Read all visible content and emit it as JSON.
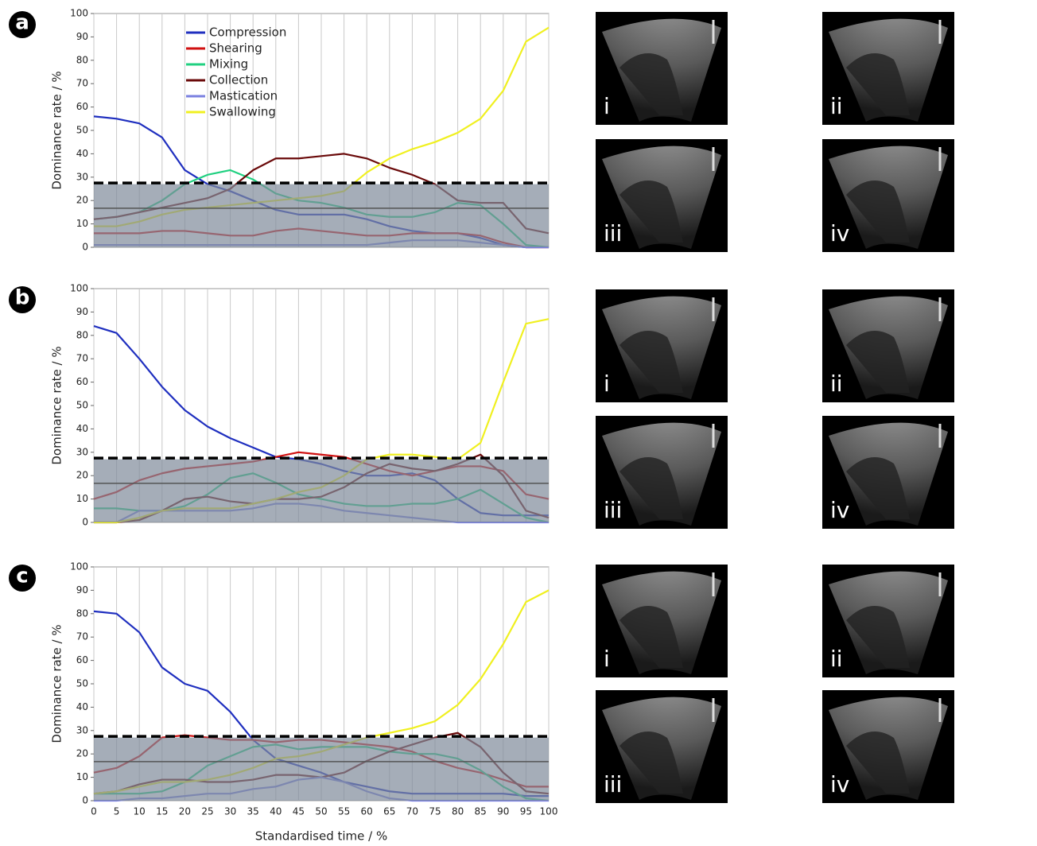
{
  "chart_data": [
    {
      "type": "line",
      "panel_label": "a",
      "ylabel": "Dominance rate / %",
      "legend": "upper left",
      "x": [
        0,
        5,
        10,
        15,
        20,
        25,
        30,
        35,
        40,
        45,
        50,
        55,
        60,
        65,
        70,
        75,
        80,
        85,
        90,
        95,
        100
      ],
      "xlim": [
        0,
        100
      ],
      "xticks": [
        0,
        5,
        10,
        15,
        20,
        25,
        30,
        35,
        40,
        45,
        50,
        55,
        60,
        65,
        70,
        75,
        80,
        85,
        90,
        95,
        100
      ],
      "xtick_labels": false,
      "ylim": [
        0,
        100
      ],
      "yticks": [
        0,
        10,
        20,
        30,
        40,
        50,
        60,
        70,
        80,
        90,
        100
      ],
      "grid": true,
      "threshold": 27.5,
      "shaded_band": [
        0,
        27
      ],
      "reference_line": 16.7,
      "series": [
        {
          "name": "Compression",
          "color": "#1f2fbf",
          "values": [
            56,
            55,
            53,
            47,
            33,
            27,
            24,
            20,
            16,
            14,
            14,
            14,
            12,
            9,
            7,
            6,
            6,
            4,
            1,
            0,
            0
          ]
        },
        {
          "name": "Shearing",
          "color": "#d01010",
          "values": [
            6,
            6,
            6,
            7,
            7,
            6,
            5,
            5,
            7,
            8,
            7,
            6,
            5,
            5,
            6,
            6,
            6,
            5,
            2,
            0,
            0
          ]
        },
        {
          "name": "Mixing",
          "color": "#20d080",
          "values": [
            12,
            13,
            15,
            20,
            27,
            31,
            33,
            29,
            23,
            20,
            19,
            17,
            14,
            13,
            13,
            15,
            19,
            18,
            10,
            1,
            0
          ]
        },
        {
          "name": "Collection",
          "color": "#6a0a0a",
          "values": [
            12,
            13,
            15,
            17,
            19,
            21,
            25,
            33,
            38,
            38,
            39,
            40,
            38,
            34,
            31,
            27,
            20,
            19,
            19,
            8,
            6
          ]
        },
        {
          "name": "Mastication",
          "color": "#7a80e0",
          "values": [
            1,
            1,
            1,
            1,
            1,
            1,
            1,
            1,
            1,
            1,
            1,
            1,
            1,
            2,
            3,
            3,
            3,
            2,
            1,
            0,
            0
          ]
        },
        {
          "name": "Swallowing",
          "color": "#f0f020",
          "values": [
            9,
            9,
            11,
            14,
            16,
            17,
            18,
            19,
            20,
            21,
            22,
            24,
            32,
            38,
            42,
            45,
            49,
            55,
            67,
            88,
            94
          ]
        }
      ]
    },
    {
      "type": "line",
      "panel_label": "b",
      "ylabel": "Dominance rate / %",
      "x": [
        0,
        5,
        10,
        15,
        20,
        25,
        30,
        35,
        40,
        45,
        50,
        55,
        60,
        65,
        70,
        75,
        80,
        85,
        90,
        95,
        100
      ],
      "xlim": [
        0,
        100
      ],
      "xticks": [
        0,
        5,
        10,
        15,
        20,
        25,
        30,
        35,
        40,
        45,
        50,
        55,
        60,
        65,
        70,
        75,
        80,
        85,
        90,
        95,
        100
      ],
      "xtick_labels": false,
      "ylim": [
        0,
        100
      ],
      "yticks": [
        0,
        10,
        20,
        30,
        40,
        50,
        60,
        70,
        80,
        90,
        100
      ],
      "grid": true,
      "threshold": 27.5,
      "shaded_band": [
        0,
        27
      ],
      "reference_line": 16.7,
      "series": [
        {
          "color": "#1f2fbf",
          "values": [
            84,
            81,
            70,
            58,
            48,
            41,
            36,
            32,
            28,
            27,
            25,
            22,
            20,
            20,
            21,
            18,
            10,
            4,
            3,
            3,
            3
          ]
        },
        {
          "color": "#d01010",
          "values": [
            10,
            13,
            18,
            21,
            23,
            24,
            25,
            26,
            28,
            30,
            29,
            28,
            25,
            22,
            20,
            22,
            24,
            24,
            22,
            12,
            10
          ]
        },
        {
          "color": "#20d080",
          "values": [
            6,
            6,
            5,
            5,
            7,
            12,
            19,
            21,
            17,
            12,
            10,
            8,
            7,
            7,
            8,
            8,
            10,
            14,
            8,
            2,
            0
          ]
        },
        {
          "color": "#6a0a0a",
          "values": [
            0,
            0,
            1,
            5,
            10,
            11,
            9,
            8,
            10,
            10,
            11,
            15,
            21,
            25,
            23,
            22,
            25,
            29,
            20,
            5,
            2
          ]
        },
        {
          "color": "#7a80e0",
          "values": [
            0,
            0,
            5,
            5,
            5,
            5,
            5,
            6,
            8,
            8,
            7,
            5,
            4,
            3,
            2,
            1,
            0,
            0,
            0,
            0,
            0
          ]
        },
        {
          "color": "#f0f020",
          "values": [
            0,
            0,
            2,
            5,
            6,
            6,
            6,
            8,
            10,
            13,
            15,
            20,
            27,
            29,
            29,
            28,
            27,
            34,
            60,
            85,
            87
          ]
        }
      ]
    },
    {
      "type": "line",
      "panel_label": "c",
      "ylabel": "Dominance rate / %",
      "xlabel": "Standardised time / %",
      "x": [
        0,
        5,
        10,
        15,
        20,
        25,
        30,
        35,
        40,
        45,
        50,
        55,
        60,
        65,
        70,
        75,
        80,
        85,
        90,
        95,
        100
      ],
      "xlim": [
        0,
        100
      ],
      "xticks": [
        0,
        5,
        10,
        15,
        20,
        25,
        30,
        35,
        40,
        45,
        50,
        55,
        60,
        65,
        70,
        75,
        80,
        85,
        90,
        95,
        100
      ],
      "xtick_labels": true,
      "ylim": [
        0,
        100
      ],
      "yticks": [
        0,
        10,
        20,
        30,
        40,
        50,
        60,
        70,
        80,
        90,
        100
      ],
      "grid": true,
      "threshold": 27.5,
      "shaded_band": [
        0,
        27
      ],
      "reference_line": 16.7,
      "series": [
        {
          "color": "#1f2fbf",
          "values": [
            81,
            80,
            72,
            57,
            50,
            47,
            38,
            26,
            18,
            15,
            12,
            8,
            6,
            4,
            3,
            3,
            3,
            3,
            3,
            2,
            2
          ]
        },
        {
          "color": "#d01010",
          "values": [
            12,
            14,
            19,
            27,
            28,
            27,
            26,
            26,
            25,
            26,
            26,
            25,
            24,
            23,
            21,
            17,
            14,
            12,
            9,
            6,
            6
          ]
        },
        {
          "color": "#20d080",
          "values": [
            3,
            3,
            3,
            4,
            8,
            15,
            19,
            23,
            24,
            22,
            23,
            23,
            23,
            21,
            20,
            20,
            18,
            13,
            6,
            1,
            0
          ]
        },
        {
          "color": "#6a0a0a",
          "values": [
            3,
            4,
            7,
            9,
            9,
            8,
            8,
            9,
            11,
            11,
            10,
            12,
            17,
            21,
            24,
            27,
            29,
            23,
            12,
            4,
            3
          ]
        },
        {
          "color": "#7a80e0",
          "values": [
            0,
            0,
            1,
            1,
            2,
            3,
            3,
            5,
            6,
            9,
            10,
            8,
            4,
            1,
            0,
            0,
            0,
            0,
            0,
            0,
            0
          ]
        },
        {
          "color": "#f0f020",
          "values": [
            3,
            4,
            6,
            8,
            8,
            9,
            11,
            14,
            18,
            19,
            21,
            24,
            27,
            29,
            31,
            34,
            41,
            52,
            67,
            85,
            90
          ]
        }
      ]
    }
  ],
  "image_panels": [
    [
      "i",
      "ii",
      "iii",
      "iv"
    ],
    [
      "i",
      "ii",
      "iii",
      "iv"
    ],
    [
      "i",
      "ii",
      "iii",
      "iv"
    ]
  ]
}
